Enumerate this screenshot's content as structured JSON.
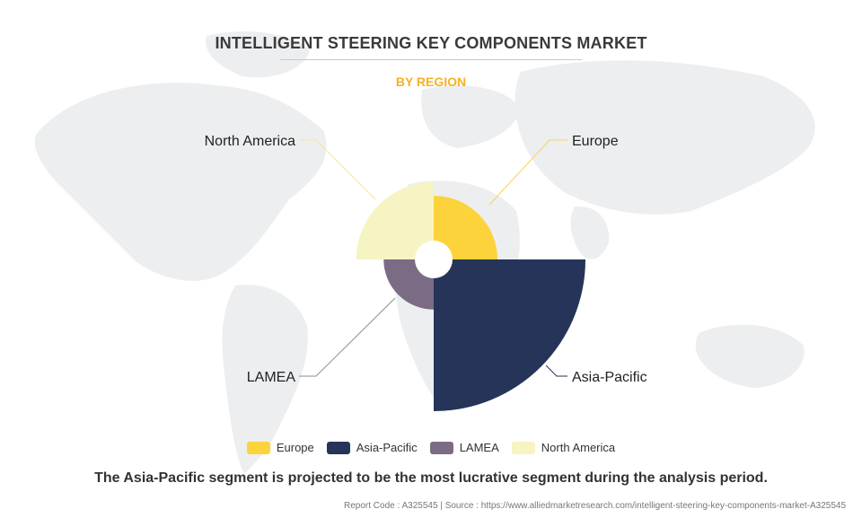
{
  "header": {
    "title": "INTELLIGENT STEERING KEY COMPONENTS MARKET",
    "subtitle": "BY REGION"
  },
  "chart_data": {
    "type": "pie",
    "variant": "polar-area",
    "title": "INTELLIGENT STEERING KEY COMPONENTS MARKET",
    "subtitle": "BY REGION",
    "categories": [
      "Europe",
      "Asia-Pacific",
      "LAMEA",
      "North America"
    ],
    "values": [
      0.42,
      1.0,
      0.33,
      0.51
    ],
    "value_note": "relative radius scale, Asia-Pacific = 1",
    "colors": [
      "#fdd33b",
      "#253458",
      "#7b6c86",
      "#f6f4c2"
    ],
    "legend_position": "bottom",
    "grid": false
  },
  "labels": {
    "europe": "Europe",
    "asia_pacific": "Asia-Pacific",
    "lamea": "LAMEA",
    "north_america": "North America"
  },
  "legend": [
    {
      "label": "Europe",
      "color": "#fdd33b"
    },
    {
      "label": "Asia-Pacific",
      "color": "#253458"
    },
    {
      "label": "LAMEA",
      "color": "#7b6c86"
    },
    {
      "label": "North America",
      "color": "#f6f4c2"
    }
  ],
  "footer": {
    "statement": "The Asia-Pacific segment is projected to be the most lucrative segment during the analysis period.",
    "report": "Report Code : A325545  |  Source : https://www.alliedmarketresearch.com/intelligent-steering-key-components-market-A325545"
  },
  "background": {
    "icon": "world-map-icon",
    "color": "#e9ebed"
  }
}
